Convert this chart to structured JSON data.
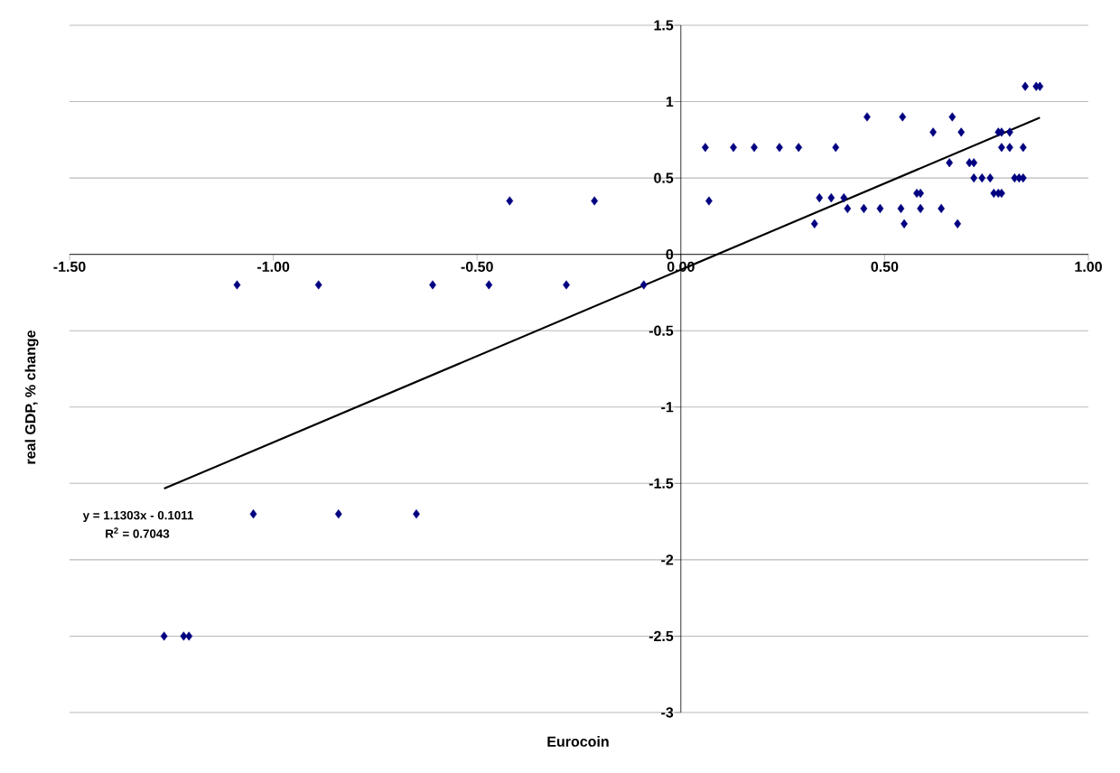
{
  "chart_data": {
    "type": "scatter",
    "xlabel": "Eurocoin",
    "ylabel": "real GDP, % change",
    "annotations": [
      "y = 1.1303x - 0.1011",
      "R$^{2}$ = 0.7043"
    ],
    "series": [
      {
        "color": "#000080",
        "marker": "diamond",
        "x": [
          0.845,
          0.872,
          0.881,
          0.457,
          0.544,
          0.666,
          0.619,
          0.688,
          0.779,
          0.787,
          0.807,
          0.06,
          0.129,
          0.18,
          0.242,
          0.289,
          0.38,
          0.787,
          0.807,
          0.84,
          0.659,
          0.708,
          0.719,
          0.719,
          0.739,
          0.759,
          0.819,
          0.83,
          0.84,
          0.579,
          0.588,
          0.768,
          0.779,
          0.787,
          0.34,
          0.369,
          0.4,
          0.069,
          -0.42,
          -0.212,
          0.409,
          0.449,
          0.489,
          0.54,
          0.588,
          0.639,
          0.328,
          0.548,
          0.679,
          -1.089,
          -0.889,
          -0.609,
          -0.471,
          -0.281,
          -0.091,
          -1.049,
          -0.84,
          -0.649,
          -1.268,
          -1.22,
          -1.207
        ],
        "values": [
          1.1,
          1.1,
          1.1,
          0.9,
          0.9,
          0.9,
          0.8,
          0.8,
          0.8,
          0.8,
          0.8,
          0.7,
          0.7,
          0.7,
          0.7,
          0.7,
          0.7,
          0.7,
          0.7,
          0.7,
          0.6,
          0.6,
          0.6,
          0.5,
          0.5,
          0.5,
          0.5,
          0.5,
          0.5,
          0.4,
          0.4,
          0.4,
          0.4,
          0.4,
          0.37,
          0.37,
          0.37,
          0.35,
          0.35,
          0.35,
          0.3,
          0.3,
          0.3,
          0.3,
          0.3,
          0.3,
          0.2,
          0.2,
          0.2,
          -0.2,
          -0.2,
          -0.2,
          -0.2,
          -0.2,
          -0.2,
          -1.7,
          -1.7,
          -1.7,
          -2.5,
          -2.5,
          -2.5
        ]
      },
      {
        "type": "line",
        "color": "#000000",
        "marker": "none",
        "x": [
          -1.268,
          0.881
        ],
        "values": [
          -1.534,
          0.895
        ]
      }
    ],
    "xlim": [
      -1.5,
      1.0
    ],
    "ylim": [
      -3,
      1.5
    ],
    "xticks": [
      {
        "value": -1.5,
        "label": "-1.50"
      },
      {
        "value": -1.0,
        "label": "-1.00"
      },
      {
        "value": -0.5,
        "label": "-0.50"
      },
      {
        "value": 0,
        "label": "0.00"
      },
      {
        "value": 0.5,
        "label": "0.50"
      },
      {
        "value": 1.0,
        "label": "1.00"
      }
    ],
    "yticks": [
      -3,
      -2.5,
      -2,
      -1.5,
      -1,
      -0.5,
      0,
      0.5,
      1,
      1.5
    ],
    "grid": "y"
  }
}
